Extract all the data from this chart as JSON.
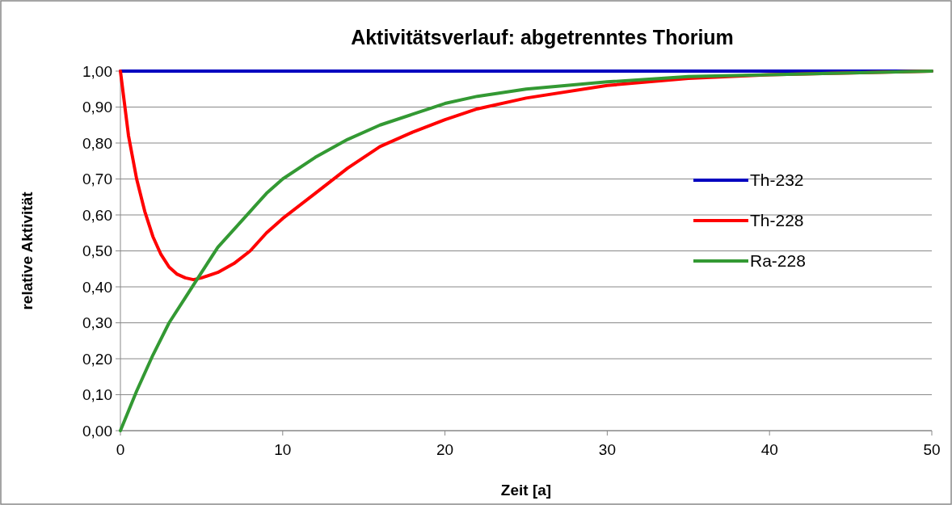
{
  "chart_data": {
    "type": "line",
    "title": "Aktivitätsverlauf: abgetrenntes Thorium",
    "xlabel": "Zeit [a]",
    "ylabel": "relative Aktivität",
    "xlim": [
      0,
      50
    ],
    "xticks": [
      0,
      10,
      20,
      30,
      40,
      50
    ],
    "ylim": [
      0,
      1
    ],
    "yticks": [
      {
        "value": 0,
        "label": "0,00"
      },
      {
        "value": 0.1,
        "label": "0,10"
      },
      {
        "value": 0.2,
        "label": "0,20"
      },
      {
        "value": 0.3,
        "label": "0,30"
      },
      {
        "value": 0.4,
        "label": "0,40"
      },
      {
        "value": 0.5,
        "label": "0,50"
      },
      {
        "value": 0.6,
        "label": "0,60"
      },
      {
        "value": 0.7,
        "label": "0,70"
      },
      {
        "value": 0.8,
        "label": "0,80"
      },
      {
        "value": 0.9,
        "label": "0,90"
      },
      {
        "value": 1,
        "label": "1,00"
      }
    ],
    "grid": "y",
    "legend": "right",
    "marker": "none",
    "line_style": "solid",
    "series": [
      {
        "name": "Th-232",
        "color": "#0000c0",
        "x": [
          0,
          50
        ],
        "values": [
          1,
          1
        ]
      },
      {
        "name": "Th-228",
        "color": "#ff0000",
        "x": [
          0,
          0.5,
          1,
          1.5,
          2,
          2.5,
          3,
          3.5,
          4,
          4.5,
          5,
          6,
          7,
          8,
          9,
          10,
          12,
          14,
          16,
          18,
          20,
          22,
          25,
          30,
          35,
          40,
          45,
          50
        ],
        "values": [
          1,
          0.82,
          0.7,
          0.61,
          0.54,
          0.49,
          0.455,
          0.435,
          0.425,
          0.42,
          0.425,
          0.44,
          0.465,
          0.5,
          0.55,
          0.59,
          0.66,
          0.73,
          0.79,
          0.83,
          0.865,
          0.895,
          0.925,
          0.96,
          0.98,
          0.99,
          0.995,
          1
        ]
      },
      {
        "name": "Ra-228",
        "color": "#339933",
        "x": [
          0,
          1,
          2,
          3,
          4,
          5,
          6,
          7,
          8,
          9,
          10,
          12,
          14,
          16,
          18,
          20,
          22,
          25,
          30,
          35,
          40,
          45,
          50
        ],
        "values": [
          0,
          0.11,
          0.21,
          0.3,
          0.37,
          0.44,
          0.51,
          0.56,
          0.61,
          0.66,
          0.7,
          0.76,
          0.81,
          0.85,
          0.88,
          0.91,
          0.93,
          0.95,
          0.97,
          0.985,
          0.99,
          0.995,
          1
        ]
      }
    ]
  }
}
